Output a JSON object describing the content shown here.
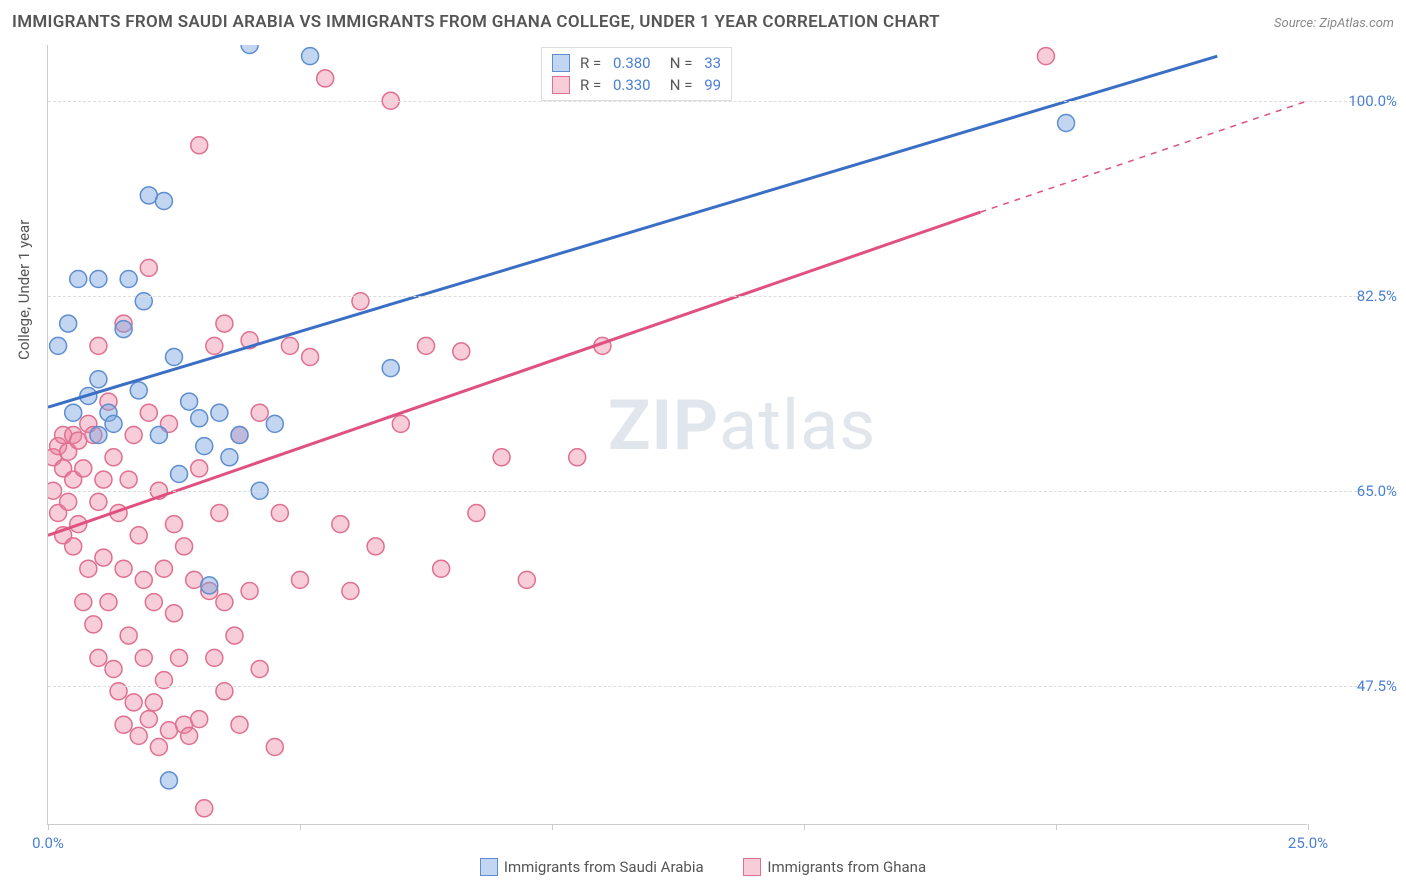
{
  "title": "IMMIGRANTS FROM SAUDI ARABIA VS IMMIGRANTS FROM GHANA COLLEGE, UNDER 1 YEAR CORRELATION CHART",
  "source": "Source: ZipAtlas.com",
  "watermark_bold": "ZIP",
  "watermark_rest": "atlas",
  "ylabel": "College, Under 1 year",
  "chart": {
    "type": "scatter",
    "x_range": [
      0,
      25
    ],
    "y_range": [
      35,
      105
    ],
    "y_gridlines": [
      47.5,
      65.0,
      82.5,
      100.0
    ],
    "y_tick_labels": [
      "47.5%",
      "65.0%",
      "82.5%",
      "100.0%"
    ],
    "x_ticks": [
      0,
      5,
      10,
      15,
      20,
      25
    ],
    "x_min_label": "0.0%",
    "x_max_label": "25.0%",
    "background_color": "#ffffff",
    "grid_color": "#dddddd",
    "axis_color": "#cccccc",
    "series": [
      {
        "key": "saudi",
        "label": "Immigrants from Saudi Arabia",
        "R_value": "0.380",
        "N_value": "33",
        "marker_fill": "rgba(121,163,224,0.45)",
        "marker_stroke": "#5e8ed0",
        "line_color": "#3b6fc6",
        "line_width": 3,
        "trend": {
          "x1": 0,
          "y1": 72.5,
          "x2": 23.2,
          "y2": 104.0,
          "dashed_continuation": false
        },
        "points": [
          [
            0.2,
            78
          ],
          [
            0.4,
            80
          ],
          [
            0.5,
            72
          ],
          [
            0.6,
            84
          ],
          [
            0.8,
            73.5
          ],
          [
            1.0,
            75
          ],
          [
            1.0,
            70
          ],
          [
            1.2,
            72
          ],
          [
            1.3,
            71
          ],
          [
            1.5,
            79.5
          ],
          [
            1.6,
            84
          ],
          [
            1.8,
            74
          ],
          [
            1.9,
            82
          ],
          [
            2.0,
            91.5
          ],
          [
            2.2,
            70
          ],
          [
            2.3,
            91
          ],
          [
            2.5,
            77
          ],
          [
            2.6,
            66.5
          ],
          [
            2.8,
            73
          ],
          [
            3.0,
            71.5
          ],
          [
            3.1,
            69
          ],
          [
            3.2,
            56.5
          ],
          [
            3.4,
            72
          ],
          [
            3.6,
            68
          ],
          [
            3.8,
            70
          ],
          [
            4.0,
            105
          ],
          [
            4.2,
            65
          ],
          [
            4.5,
            71
          ],
          [
            5.2,
            104
          ],
          [
            6.8,
            76
          ],
          [
            2.4,
            39
          ],
          [
            20.2,
            98
          ],
          [
            1.0,
            84
          ]
        ]
      },
      {
        "key": "ghana",
        "label": "Immigrants from Ghana",
        "R_value": "0.330",
        "N_value": "99",
        "marker_fill": "rgba(235,130,160,0.4)",
        "marker_stroke": "#e0708f",
        "line_color": "#e05080",
        "line_width": 3,
        "trend": {
          "x1": 0,
          "y1": 61.0,
          "x2": 18.5,
          "y2": 90.0,
          "dashed_continuation": true,
          "dx2": 25,
          "dy2": 100.0
        },
        "points": [
          [
            0.1,
            68
          ],
          [
            0.1,
            65
          ],
          [
            0.2,
            69
          ],
          [
            0.2,
            63
          ],
          [
            0.3,
            70
          ],
          [
            0.3,
            67
          ],
          [
            0.3,
            61
          ],
          [
            0.4,
            68.5
          ],
          [
            0.4,
            64
          ],
          [
            0.5,
            70
          ],
          [
            0.5,
            66
          ],
          [
            0.5,
            60
          ],
          [
            0.6,
            69.5
          ],
          [
            0.6,
            62
          ],
          [
            0.7,
            67
          ],
          [
            0.7,
            55
          ],
          [
            0.8,
            71
          ],
          [
            0.8,
            58
          ],
          [
            0.9,
            70
          ],
          [
            0.9,
            53
          ],
          [
            1.0,
            78
          ],
          [
            1.0,
            64
          ],
          [
            1.0,
            50
          ],
          [
            1.1,
            66
          ],
          [
            1.1,
            59
          ],
          [
            1.2,
            73
          ],
          [
            1.2,
            55
          ],
          [
            1.3,
            68
          ],
          [
            1.3,
            49
          ],
          [
            1.4,
            63
          ],
          [
            1.4,
            47
          ],
          [
            1.5,
            80
          ],
          [
            1.5,
            58
          ],
          [
            1.5,
            44
          ],
          [
            1.6,
            66
          ],
          [
            1.6,
            52
          ],
          [
            1.7,
            70
          ],
          [
            1.7,
            46
          ],
          [
            1.8,
            61
          ],
          [
            1.8,
            43
          ],
          [
            1.9,
            57
          ],
          [
            1.9,
            50
          ],
          [
            2.0,
            72
          ],
          [
            2.0,
            44.5
          ],
          [
            2.1,
            55
          ],
          [
            2.1,
            46
          ],
          [
            2.2,
            65
          ],
          [
            2.2,
            42
          ],
          [
            2.3,
            58
          ],
          [
            2.3,
            48
          ],
          [
            2.4,
            71
          ],
          [
            2.4,
            43.5
          ],
          [
            2.5,
            62
          ],
          [
            2.5,
            54
          ],
          [
            2.6,
            50
          ],
          [
            2.7,
            60
          ],
          [
            2.7,
            44
          ],
          [
            2.8,
            43
          ],
          [
            2.9,
            57
          ],
          [
            3.0,
            67
          ],
          [
            3.0,
            44.5
          ],
          [
            3.1,
            36.5
          ],
          [
            3.2,
            56
          ],
          [
            3.3,
            78
          ],
          [
            3.3,
            50
          ],
          [
            3.4,
            63
          ],
          [
            3.5,
            80
          ],
          [
            3.5,
            55
          ],
          [
            3.5,
            47
          ],
          [
            3.7,
            52
          ],
          [
            3.8,
            70
          ],
          [
            3.8,
            44
          ],
          [
            4.0,
            78.5
          ],
          [
            4.0,
            56
          ],
          [
            4.2,
            72
          ],
          [
            4.2,
            49
          ],
          [
            4.5,
            42
          ],
          [
            4.6,
            63
          ],
          [
            4.8,
            78
          ],
          [
            5.0,
            57
          ],
          [
            5.2,
            77
          ],
          [
            5.5,
            102
          ],
          [
            5.8,
            62
          ],
          [
            6.0,
            56
          ],
          [
            6.2,
            82
          ],
          [
            6.5,
            60
          ],
          [
            6.8,
            100
          ],
          [
            7.0,
            71
          ],
          [
            7.5,
            78
          ],
          [
            7.8,
            58
          ],
          [
            8.2,
            77.5
          ],
          [
            8.5,
            63
          ],
          [
            9.0,
            68
          ],
          [
            9.5,
            57
          ],
          [
            10.5,
            68
          ],
          [
            11.0,
            78
          ],
          [
            19.8,
            104
          ],
          [
            3.0,
            96
          ],
          [
            2.0,
            85
          ]
        ]
      }
    ]
  },
  "legend_R_prefix": "R =",
  "legend_N_prefix": "N ="
}
